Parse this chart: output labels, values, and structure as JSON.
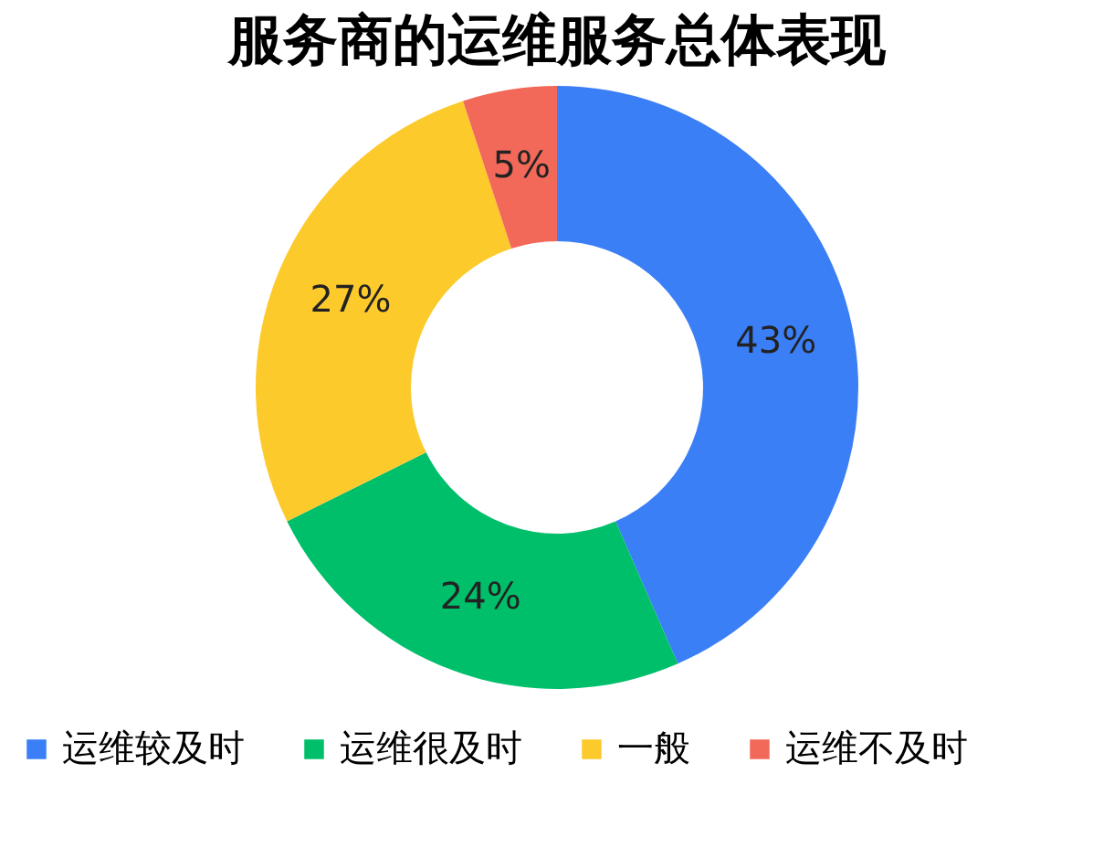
{
  "chart_data": {
    "type": "donut",
    "title": "服务商的运维服务总体表现",
    "categories": [
      "运维较及时",
      "运维很及时",
      "一般",
      "运维不及时"
    ],
    "values": [
      43,
      24,
      27,
      5
    ],
    "value_labels": [
      "43%",
      "24%",
      "27%",
      "5%"
    ],
    "colors": [
      "#3b7ff6",
      "#00bf6b",
      "#fdca2c",
      "#f2695a"
    ],
    "legend": "bottom"
  }
}
